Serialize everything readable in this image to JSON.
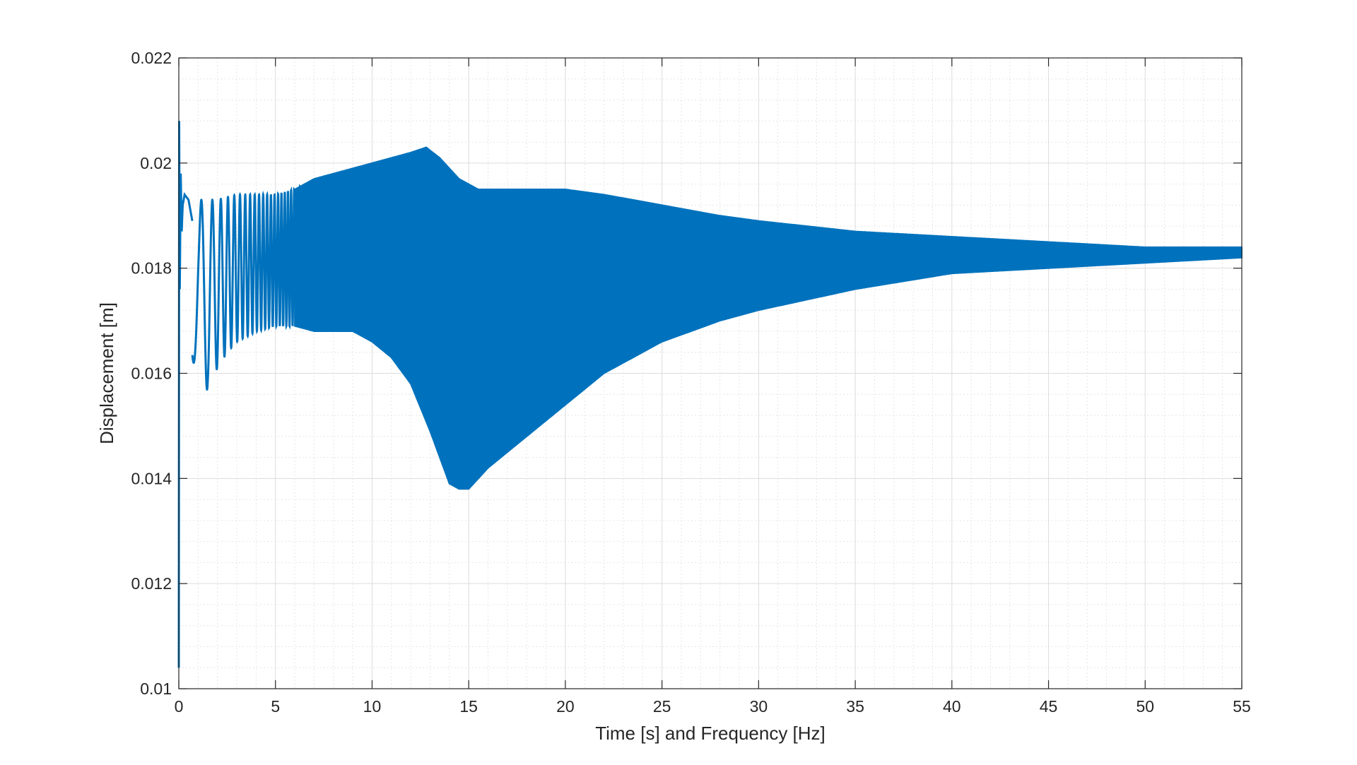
{
  "chart_data": {
    "type": "line",
    "title": "",
    "xlabel": "Time [s] and Frequency [Hz]",
    "ylabel": "Displacement [m]",
    "xlim": [
      0,
      55
    ],
    "ylim": [
      0.01,
      0.022
    ],
    "xticks": [
      0,
      5,
      10,
      15,
      20,
      25,
      30,
      35,
      40,
      45,
      50,
      55
    ],
    "xtick_labels": [
      "0",
      "5",
      "10",
      "15",
      "20",
      "25",
      "30",
      "35",
      "40",
      "45",
      "50",
      "55"
    ],
    "yticks": [
      0.01,
      0.012,
      0.014,
      0.016,
      0.018,
      0.02,
      0.022
    ],
    "ytick_labels": [
      "0.01",
      "0.012",
      "0.014",
      "0.016",
      "0.018",
      "0.02",
      "0.022"
    ],
    "grid": true,
    "minor_grid": true,
    "line_color": "#0072BD",
    "series": [
      {
        "name": "displacement",
        "description_of_shape": "chirp-excited oscillation; upper/lower envelope of the response",
        "initial_transient": {
          "x": [
            0.0,
            0.02,
            0.05,
            0.1,
            0.15,
            0.2,
            0.3,
            0.5,
            0.7
          ],
          "y": [
            0.0104,
            0.0208,
            0.0176,
            0.0198,
            0.0187,
            0.0192,
            0.0194,
            0.0193,
            0.0189
          ]
        },
        "upper_envelope": {
          "x": [
            1,
            2,
            3,
            4,
            5,
            6,
            7,
            8,
            9,
            10,
            11,
            12,
            12.8,
            13.5,
            14.5,
            15.5,
            17,
            20,
            22,
            25,
            28,
            30,
            35,
            40,
            45,
            50,
            55
          ],
          "y": [
            0.0193,
            0.0193,
            0.0194,
            0.0194,
            0.0194,
            0.0195,
            0.0197,
            0.0198,
            0.0199,
            0.02,
            0.0201,
            0.0202,
            0.0203,
            0.0201,
            0.0197,
            0.0195,
            0.0195,
            0.0195,
            0.0194,
            0.0192,
            0.019,
            0.0189,
            0.0187,
            0.0186,
            0.0185,
            0.0184,
            0.0184
          ]
        },
        "lower_envelope": {
          "x": [
            1,
            1.2,
            1.5,
            2,
            2.5,
            3,
            4,
            5,
            6,
            7,
            8,
            9,
            10,
            11,
            12,
            13,
            14,
            14.5,
            15,
            16,
            18,
            20,
            22,
            25,
            28,
            30,
            35,
            40,
            45,
            50,
            55
          ],
          "y": [
            0.0162,
            0.0148,
            0.0158,
            0.0161,
            0.0164,
            0.0166,
            0.0168,
            0.0169,
            0.0169,
            0.0168,
            0.0168,
            0.0168,
            0.0166,
            0.0163,
            0.0158,
            0.0149,
            0.0139,
            0.0138,
            0.0138,
            0.0142,
            0.0148,
            0.0154,
            0.016,
            0.0166,
            0.017,
            0.0172,
            0.0176,
            0.0179,
            0.018,
            0.0181,
            0.0182
          ]
        }
      }
    ]
  }
}
